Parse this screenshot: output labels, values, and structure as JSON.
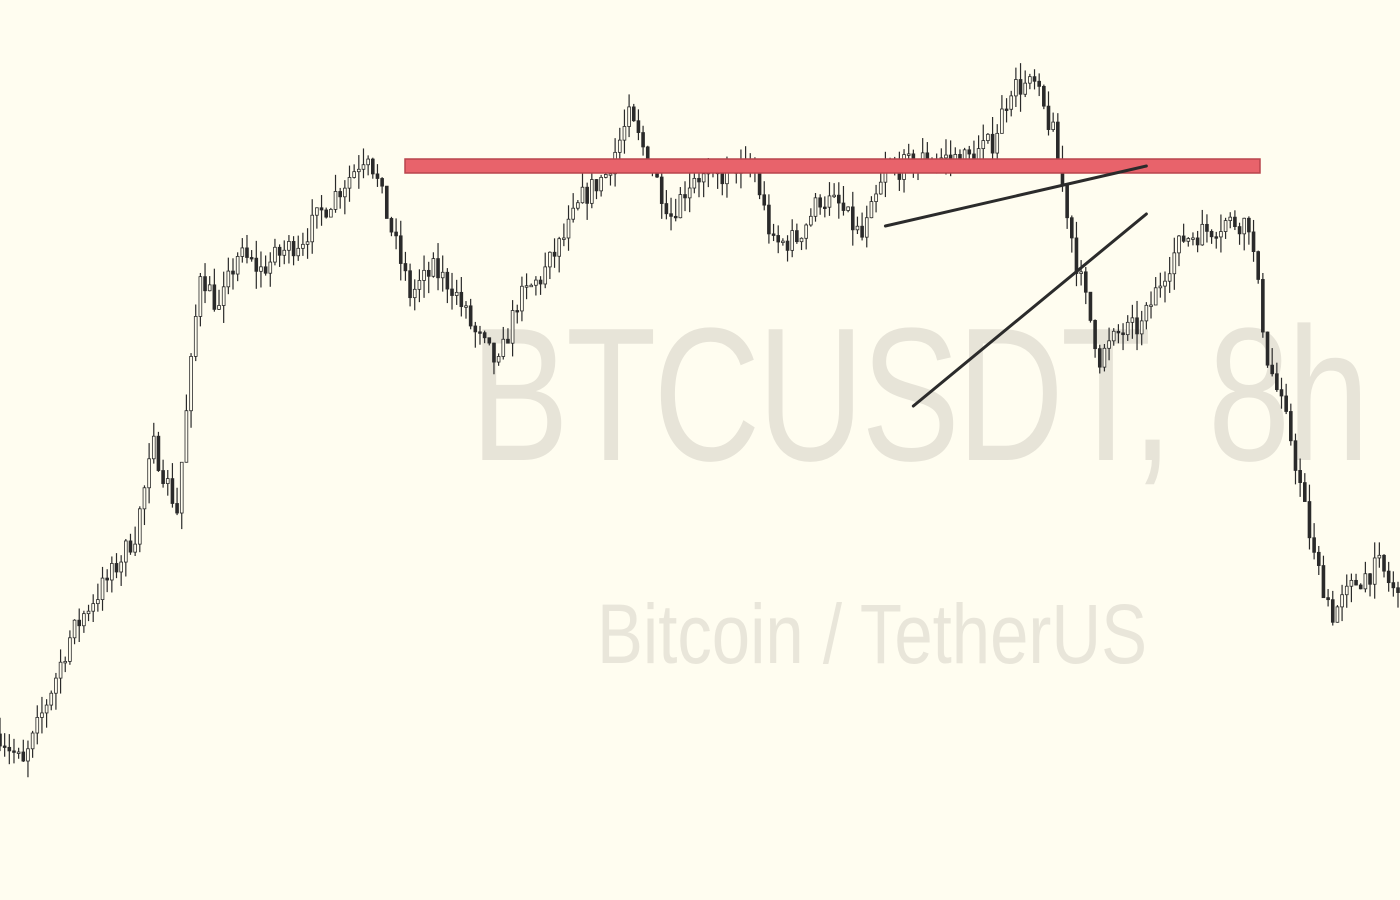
{
  "watermark": {
    "symbol": "BTCUSDT, 8h",
    "description": "Bitcoin / TetherUS"
  },
  "colors": {
    "background": "#fffdf0",
    "candles": "#2a2a2a",
    "resistance_fill": "#e8636b",
    "resistance_border": "#b8454c",
    "trendline": "#2b2b2b",
    "watermark": "#e7e4d8"
  },
  "chart_data": {
    "type": "line",
    "title": "",
    "xlabel": "",
    "ylabel": "",
    "grid": false,
    "ylim": [
      0,
      100
    ],
    "x": [
      0,
      5,
      10,
      15,
      19,
      24,
      29,
      33,
      38,
      43,
      47,
      51,
      56,
      60,
      65,
      70,
      74,
      79,
      84,
      88,
      93,
      97,
      102,
      107,
      111,
      116,
      121,
      125,
      130,
      135,
      139,
      144,
      149,
      153,
      158,
      162,
      166,
      171,
      176,
      180,
      185,
      190,
      194,
      199,
      204,
      208,
      213,
      217,
      222,
      226,
      231,
      236,
      240,
      245,
      250,
      254,
      259,
      263,
      268,
      272,
      277,
      282,
      286,
      291,
      296,
      300
    ],
    "series": [
      {
        "values": [
          17,
          13,
          21,
          29,
          33,
          37,
          42,
          53,
          45,
          75,
          70,
          77,
          75,
          77,
          79,
          83,
          86,
          90,
          80,
          72,
          75,
          73,
          67,
          63,
          71,
          74,
          79,
          84,
          87,
          94,
          89,
          82,
          87,
          86,
          88,
          87,
          78,
          79,
          84,
          83,
          79,
          87,
          88,
          89,
          89,
          89,
          91,
          98,
          98,
          92,
          76,
          64,
          67,
          68,
          75,
          79,
          80,
          81,
          81,
          64,
          54,
          39,
          32,
          36,
          38,
          34
        ]
      }
    ],
    "annotations": {
      "resistance_level": 88,
      "wedge_upper_line": {
        "from": [
          190,
          80.5
        ],
        "to": [
          246,
          88
        ]
      },
      "wedge_lower_line": {
        "from": [
          196,
          58
        ],
        "to": [
          246,
          82
        ]
      }
    }
  }
}
